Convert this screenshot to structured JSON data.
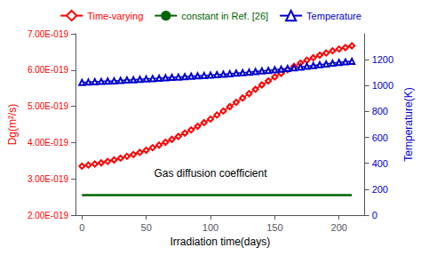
{
  "chart_data": {
    "type": "line",
    "xlabel": "Irradiation time(days)",
    "ylabel": "Dg(m²/s)",
    "y2label": "Temperature(K)",
    "annotations": [
      "Gas diffusion coefficient"
    ],
    "xlim": [
      -5,
      220
    ],
    "xticks": [
      0,
      50,
      100,
      150,
      200
    ],
    "ylim": [
      2e-19,
      7e-19
    ],
    "yticks": [
      {
        "value": 2e-19,
        "label": "2.00E-019"
      },
      {
        "value": 3e-19,
        "label": "3.00E-019"
      },
      {
        "value": 4e-19,
        "label": "4.00E-019"
      },
      {
        "value": 5e-19,
        "label": "5.00E-019"
      },
      {
        "value": 6e-19,
        "label": "6.00E-019"
      },
      {
        "value": 7e-19,
        "label": "7.00E-019"
      }
    ],
    "y2lim": [
      0,
      1400
    ],
    "y2ticks": [
      0,
      200,
      400,
      600,
      800,
      1000,
      1200
    ],
    "grid": false,
    "legend": "top",
    "series": [
      {
        "name": "Time-varying",
        "color": "#ff0000",
        "marker": "diamond",
        "x": [
          0,
          5,
          10,
          15,
          20,
          25,
          30,
          35,
          40,
          45,
          50,
          55,
          60,
          65,
          70,
          75,
          80,
          85,
          90,
          95,
          100,
          105,
          110,
          115,
          120,
          125,
          130,
          135,
          140,
          145,
          150,
          155,
          160,
          165,
          170,
          175,
          180,
          185,
          190,
          195,
          200,
          205,
          210
        ],
        "values": [
          3.35e-19,
          3.38e-19,
          3.41e-19,
          3.44e-19,
          3.48e-19,
          3.52e-19,
          3.57e-19,
          3.62e-19,
          3.67e-19,
          3.73e-19,
          3.79e-19,
          3.86e-19,
          3.93e-19,
          4.01e-19,
          4.09e-19,
          4.17e-19,
          4.26e-19,
          4.35e-19,
          4.45e-19,
          4.55e-19,
          4.65e-19,
          4.76e-19,
          4.87e-19,
          4.99e-19,
          5.11e-19,
          5.23e-19,
          5.35e-19,
          5.47e-19,
          5.59e-19,
          5.7e-19,
          5.81e-19,
          5.91e-19,
          6.01e-19,
          6.1e-19,
          6.19e-19,
          6.27e-19,
          6.34e-19,
          6.41e-19,
          6.47e-19,
          6.53e-19,
          6.58e-19,
          6.62e-19,
          6.67e-19
        ]
      },
      {
        "name": "constant in Ref. [26]",
        "color": "#006400",
        "x": [
          0,
          210
        ],
        "values": [
          2.55e-19,
          2.55e-19
        ]
      },
      {
        "name": "Temperature",
        "color": "#0000cc",
        "marker": "triangle",
        "axis": "y2",
        "x": [
          0,
          5,
          10,
          15,
          20,
          25,
          30,
          35,
          40,
          45,
          50,
          55,
          60,
          65,
          70,
          75,
          80,
          85,
          90,
          95,
          100,
          105,
          110,
          115,
          120,
          125,
          130,
          135,
          140,
          145,
          150,
          155,
          160,
          165,
          170,
          175,
          180,
          185,
          190,
          195,
          200,
          205,
          210
        ],
        "values": [
          1025,
          1027,
          1030,
          1032,
          1035,
          1037,
          1040,
          1043,
          1045,
          1048,
          1051,
          1054,
          1057,
          1060,
          1063,
          1066,
          1069,
          1072,
          1075,
          1078,
          1081,
          1084,
          1088,
          1092,
          1096,
          1100,
          1104,
          1108,
          1113,
          1117,
          1122,
          1127,
          1132,
          1137,
          1143,
          1149,
          1155,
          1161,
          1167,
          1173,
          1179,
          1183,
          1188
        ]
      }
    ]
  }
}
